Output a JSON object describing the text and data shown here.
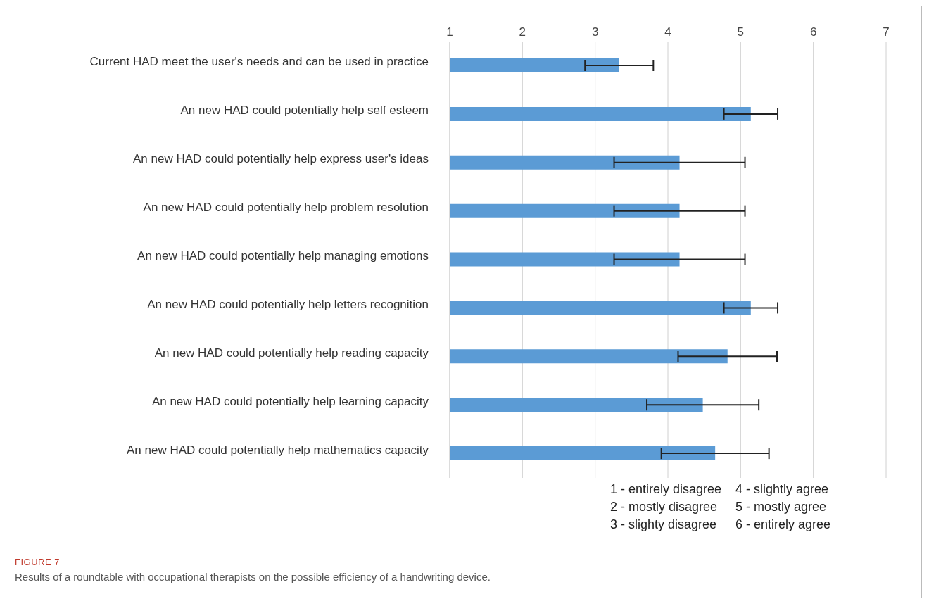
{
  "chart_data": {
    "type": "bar",
    "orientation": "horizontal",
    "categories": [
      "Current HAD meet the user's needs and can be used in practice",
      "An new HAD could potentially help self esteem",
      "An new HAD could potentially help express user's ideas",
      "An new HAD could potentially help problem resolution",
      "An new HAD could potentially help managing emotions",
      "An new HAD could potentially help letters recognition",
      "An new HAD could potentially help reading capacity",
      "An new HAD could potentially help learning capacity",
      "An new HAD could potentially help mathematics capacity"
    ],
    "values": [
      3.33,
      5.14,
      4.16,
      4.16,
      4.16,
      5.14,
      4.82,
      4.48,
      4.65
    ],
    "errors": [
      0.47,
      0.37,
      0.9,
      0.9,
      0.9,
      0.37,
      0.68,
      0.77,
      0.74
    ],
    "color": "#5b9bd5",
    "xlim": [
      1,
      7
    ],
    "xticks": [
      1,
      2,
      3,
      4,
      5,
      6,
      7
    ],
    "grid": "x",
    "annotations": [
      "1 - entirely disagree",
      "2 - mostly disagree",
      "3 - slighty disagree",
      "4 - slightly agree",
      "5 - mostly agree",
      "6 - entirely agree",
      "FIGURE 7",
      "Results of a roundtable with occupational therapists on the possible efficiency of a handwriting device."
    ]
  }
}
